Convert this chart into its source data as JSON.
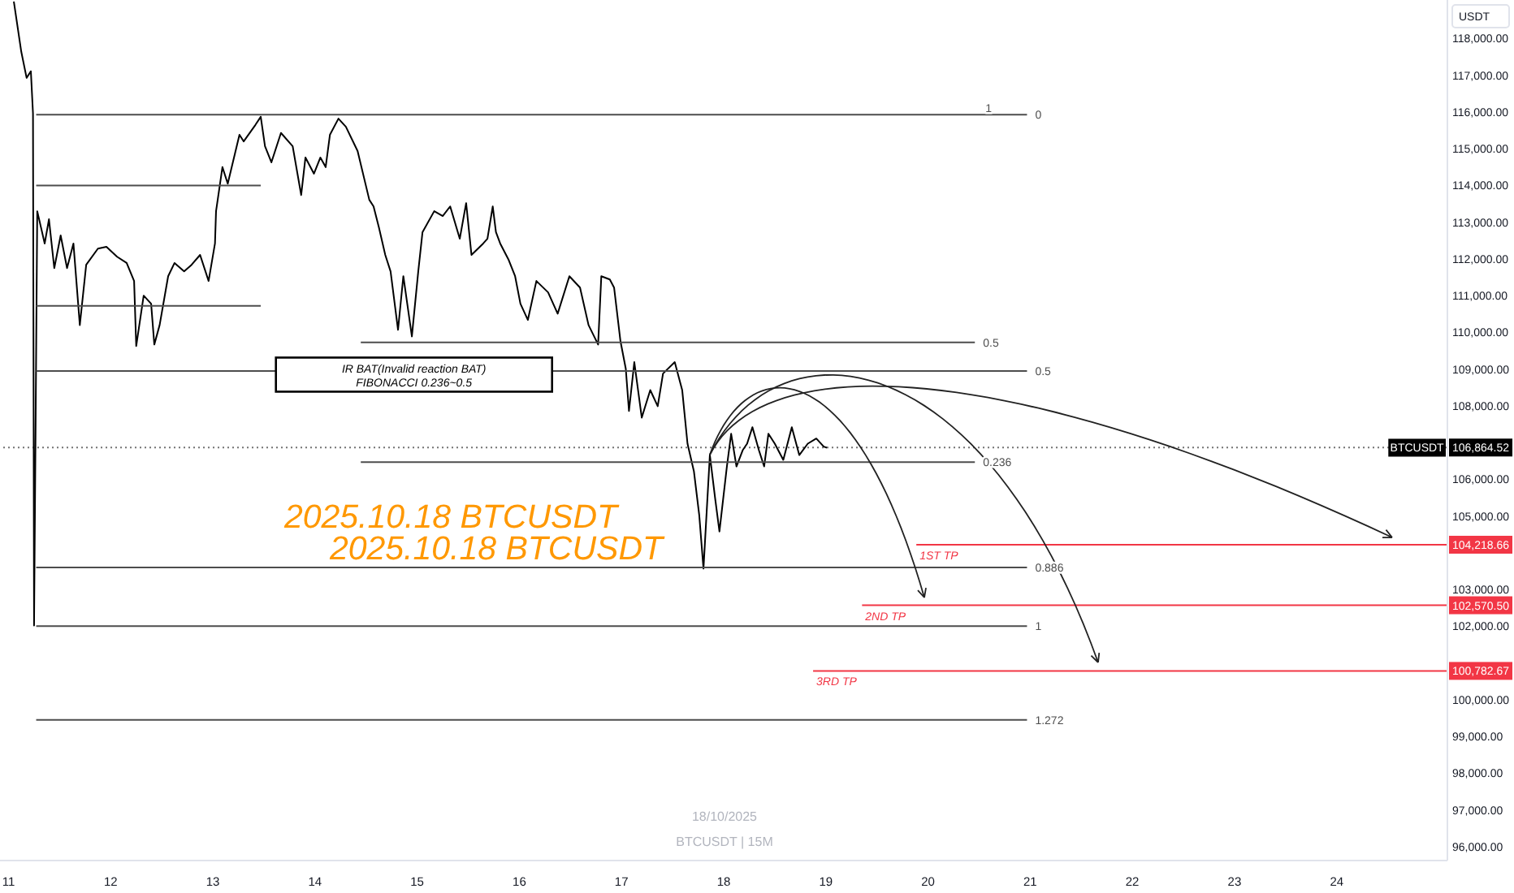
{
  "chart_data": {
    "type": "line",
    "ylabel": "USDT",
    "annotations": [
      {
        "text": "1",
        "x": "2025-10-20T14:15",
        "y": 115930
      },
      {
        "text": "IR BAT(Invalid reaction BAT)\nFIBONACCI 0.236~0.5",
        "x": "2025-10-14T23:15",
        "y": 108850
      },
      "2025.10.18 BTCUSDT",
      "2025.10.18 BTCUSDT",
      "18/10/2025",
      "BTCUSDT | 15M"
    ],
    "xlim": [
      "2025-10-10T22:00",
      "2025-10-25T02:00"
    ],
    "xticks": [
      {
        "value": "2025-10-11",
        "label": "11"
      },
      {
        "value": "2025-10-12",
        "label": "12"
      },
      {
        "value": "2025-10-13",
        "label": "13"
      },
      {
        "value": "2025-10-14",
        "label": "14"
      },
      {
        "value": "2025-10-15",
        "label": "15"
      },
      {
        "value": "2025-10-16",
        "label": "16"
      },
      {
        "value": "2025-10-17",
        "label": "17"
      },
      {
        "value": "2025-10-18",
        "label": "18"
      },
      {
        "value": "2025-10-19",
        "label": "19"
      },
      {
        "value": "2025-10-20",
        "label": "20"
      },
      {
        "value": "2025-10-21",
        "label": "21"
      },
      {
        "value": "2025-10-22",
        "label": "22"
      },
      {
        "value": "2025-10-23",
        "label": "23"
      },
      {
        "value": "2025-10-24",
        "label": "24"
      }
    ],
    "ylim": [
      95620,
      119050
    ],
    "yticks": [
      {
        "value": 96000,
        "label": "96,000.00"
      },
      {
        "value": 97000,
        "label": "97,000.00"
      },
      {
        "value": 98000,
        "label": "98,000.00"
      },
      {
        "value": 99000,
        "label": "99,000.00"
      },
      {
        "value": 100000,
        "label": "100,000.00"
      },
      {
        "value": 102000,
        "label": "102,000.00"
      },
      {
        "value": 103000,
        "label": "103,000.00"
      },
      {
        "value": 105000,
        "label": "105,000.00"
      },
      {
        "value": 106000,
        "label": "106,000.00"
      },
      {
        "value": 108000,
        "label": "108,000.00"
      },
      {
        "value": 109000,
        "label": "109,000.00"
      },
      {
        "value": 110000,
        "label": "110,000.00"
      },
      {
        "value": 111000,
        "label": "111,000.00"
      },
      {
        "value": 112000,
        "label": "112,000.00"
      },
      {
        "value": 113000,
        "label": "113,000.00"
      },
      {
        "value": 114000,
        "label": "114,000.00"
      },
      {
        "value": 115000,
        "label": "115,000.00"
      },
      {
        "value": 116000,
        "label": "116,000.00"
      },
      {
        "value": 117000,
        "label": "117,000.00"
      },
      {
        "value": 118000,
        "label": "118,000.00"
      }
    ],
    "ref_lines": [
      {
        "axis": "y",
        "value": 106864.52,
        "label": "106,864.52",
        "color": "#000000",
        "line_style": "dotted"
      }
    ],
    "series": [
      {
        "name": "BTCUSDT",
        "color": "#000000",
        "x": [
          "2025-10-11T01:15",
          "2025-10-11T03:00",
          "2025-10-11T04:15",
          "2025-10-11T05:15",
          "2025-10-11T05:45",
          "2025-10-11T06:00",
          "2025-10-11T06:45",
          "2025-10-11T08:30",
          "2025-10-11T09:30",
          "2025-10-11T10:45",
          "2025-10-11T12:15",
          "2025-10-11T13:45",
          "2025-10-11T15:15",
          "2025-10-11T16:45",
          "2025-10-11T18:15",
          "2025-10-11T21:00",
          "2025-10-11T23:00",
          "2025-10-12T01:30",
          "2025-10-12T03:45",
          "2025-10-12T05:30",
          "2025-10-12T06:00",
          "2025-10-12T07:45",
          "2025-10-12T09:30",
          "2025-10-12T10:15",
          "2025-10-12T11:30",
          "2025-10-12T13:30",
          "2025-10-12T15:00",
          "2025-10-12T17:15",
          "2025-10-12T19:00",
          "2025-10-12T21:00",
          "2025-10-12T23:00",
          "2025-10-13T00:30",
          "2025-10-13T00:45",
          "2025-10-13T02:15",
          "2025-10-13T03:30",
          "2025-10-13T06:15",
          "2025-10-13T07:15",
          "2025-10-13T10:00",
          "2025-10-13T11:15",
          "2025-10-13T12:15",
          "2025-10-13T13:45",
          "2025-10-13T16:00",
          "2025-10-13T18:45",
          "2025-10-13T20:45",
          "2025-10-13T21:45",
          "2025-10-13T23:45",
          "2025-10-14T01:15",
          "2025-10-14T02:30",
          "2025-10-14T03:30",
          "2025-10-14T05:30",
          "2025-10-14T07:15",
          "2025-10-14T10:00",
          "2025-10-14T12:45",
          "2025-10-14T13:45",
          "2025-10-14T15:00",
          "2025-10-14T16:30",
          "2025-10-14T17:45",
          "2025-10-14T19:30",
          "2025-10-14T20:45",
          "2025-10-14T22:45",
          "2025-10-15T00:15",
          "2025-10-15T01:15",
          "2025-10-15T04:00",
          "2025-10-15T06:00",
          "2025-10-15T07:45",
          "2025-10-15T10:00",
          "2025-10-15T11:30",
          "2025-10-15T12:45",
          "2025-10-15T15:30",
          "2025-10-15T16:30",
          "2025-10-15T17:45",
          "2025-10-15T18:30",
          "2025-10-15T19:30",
          "2025-10-15T21:30",
          "2025-10-15T23:00",
          "2025-10-16T00:15",
          "2025-10-16T02:00",
          "2025-10-16T04:00",
          "2025-10-16T06:45",
          "2025-10-16T09:00",
          "2025-10-16T11:45",
          "2025-10-16T14:15",
          "2025-10-16T16:15",
          "2025-10-16T18:30",
          "2025-10-16T19:15",
          "2025-10-16T21:15",
          "2025-10-16T22:15",
          "2025-10-16T23:45",
          "2025-10-17T01:00",
          "2025-10-17T01:45",
          "2025-10-17T03:00",
          "2025-10-17T04:45",
          "2025-10-17T06:45",
          "2025-10-17T08:30",
          "2025-10-17T09:45",
          "2025-10-17T12:30",
          "2025-10-17T14:15",
          "2025-10-17T15:30",
          "2025-10-17T17:00",
          "2025-10-17T18:15",
          "2025-10-17T19:15",
          "2025-10-17T20:45",
          "2025-10-17T22:00",
          "2025-10-17T23:00",
          "2025-10-18T00:45",
          "2025-10-18T01:45",
          "2025-10-18T03:00",
          "2025-10-18T04:30",
          "2025-10-18T05:30",
          "2025-10-18T06:45",
          "2025-10-18T08:15",
          "2025-10-18T09:30",
          "2025-10-18T10:30",
          "2025-10-18T12:00",
          "2025-10-18T14:00",
          "2025-10-18T16:00",
          "2025-10-18T17:45",
          "2025-10-18T19:45",
          "2025-10-18T21:45",
          "2025-10-18T23:30",
          "2025-10-19T00:15"
        ],
        "values": [
          119010,
          117640,
          116930,
          117110,
          115960,
          102020,
          113300,
          112420,
          113080,
          111750,
          112640,
          111750,
          112420,
          110200,
          111840,
          112280,
          112330,
          112060,
          111890,
          111400,
          109630,
          111000,
          110780,
          109670,
          110200,
          111530,
          111890,
          111660,
          111840,
          112110,
          111400,
          112420,
          113300,
          114500,
          114050,
          115380,
          115200,
          115650,
          115870,
          115070,
          114630,
          115430,
          115070,
          113740,
          114760,
          114320,
          114760,
          114500,
          115380,
          115820,
          115600,
          114940,
          113610,
          113430,
          112860,
          112110,
          111660,
          110070,
          111530,
          109890,
          111660,
          112730,
          113300,
          113170,
          113430,
          112550,
          113520,
          112110,
          112420,
          112550,
          113430,
          112730,
          112420,
          111970,
          111530,
          110780,
          110340,
          111400,
          111090,
          110510,
          111530,
          111220,
          110200,
          109670,
          111530,
          111440,
          111220,
          109760,
          109010,
          107860,
          109190,
          107680,
          108430,
          107990,
          108880,
          109190,
          108430,
          106970,
          106220,
          105030,
          103570,
          106660,
          105470,
          104580,
          106350,
          107240,
          106350,
          106800,
          106970,
          107420,
          106800,
          106350,
          107240,
          106970,
          106530,
          107420,
          106660,
          106970,
          107110,
          106890,
          106860
        ]
      },
      {
        "color": "#4d4d4d",
        "x": [
          "2025-10-11T06:30",
          "2025-10-13T11:15"
        ],
        "values": [
          114000,
          114000
        ]
      },
      {
        "color": "#4d4d4d",
        "x": [
          "2025-10-11T06:30",
          "2025-10-13T11:15"
        ],
        "values": [
          110720,
          110720
        ]
      },
      {
        "name": "0",
        "color": "#4d4d4d",
        "x": [
          "2025-10-11T06:30",
          "2025-10-20T23:15"
        ],
        "values": [
          115930,
          115930
        ]
      },
      {
        "name": "0.5",
        "color": "#4d4d4d",
        "x": [
          "2025-10-11T06:30",
          "2025-10-20T23:15"
        ],
        "values": [
          108950,
          108950
        ]
      },
      {
        "name": "0.886",
        "color": "#4d4d4d",
        "x": [
          "2025-10-11T06:30",
          "2025-10-20T23:15"
        ],
        "values": [
          103600,
          103600
        ]
      },
      {
        "name": "1",
        "color": "#4d4d4d",
        "x": [
          "2025-10-11T06:30",
          "2025-10-20T23:15"
        ],
        "values": [
          102000,
          102000
        ]
      },
      {
        "name": "1.272",
        "color": "#4d4d4d",
        "x": [
          "2025-10-11T06:30",
          "2025-10-20T23:15"
        ],
        "values": [
          99450,
          99450
        ]
      },
      {
        "name": "0.5",
        "color": "#4d4d4d",
        "x": [
          "2025-10-14T10:45",
          "2025-10-20T11:00"
        ],
        "values": [
          109730,
          109730
        ]
      },
      {
        "name": "0.236",
        "color": "#4d4d4d",
        "x": [
          "2025-10-14T10:45",
          "2025-10-20T11:00"
        ],
        "values": [
          106470,
          106470
        ]
      },
      {
        "name": "1ST TP",
        "color": "#f23645",
        "x": [
          "2025-10-19T21:15",
          "2025-10-25T02:00"
        ],
        "values": [
          104218.66,
          104218.66
        ],
        "value_labels": [
          null,
          "104,218.66"
        ]
      },
      {
        "name": "2ND TP",
        "color": "#f23645",
        "x": [
          "2025-10-19T08:30",
          "2025-10-25T02:00"
        ],
        "values": [
          102570.5,
          102570.5
        ],
        "value_labels": [
          null,
          "102,570.50"
        ]
      },
      {
        "name": "3RD TP",
        "color": "#f23645",
        "x": [
          "2025-10-18T21:00",
          "2025-10-25T02:00"
        ],
        "values": [
          100782.67,
          100782.67
        ],
        "value_labels": [
          null,
          "100,782.67"
        ]
      }
    ]
  }
}
